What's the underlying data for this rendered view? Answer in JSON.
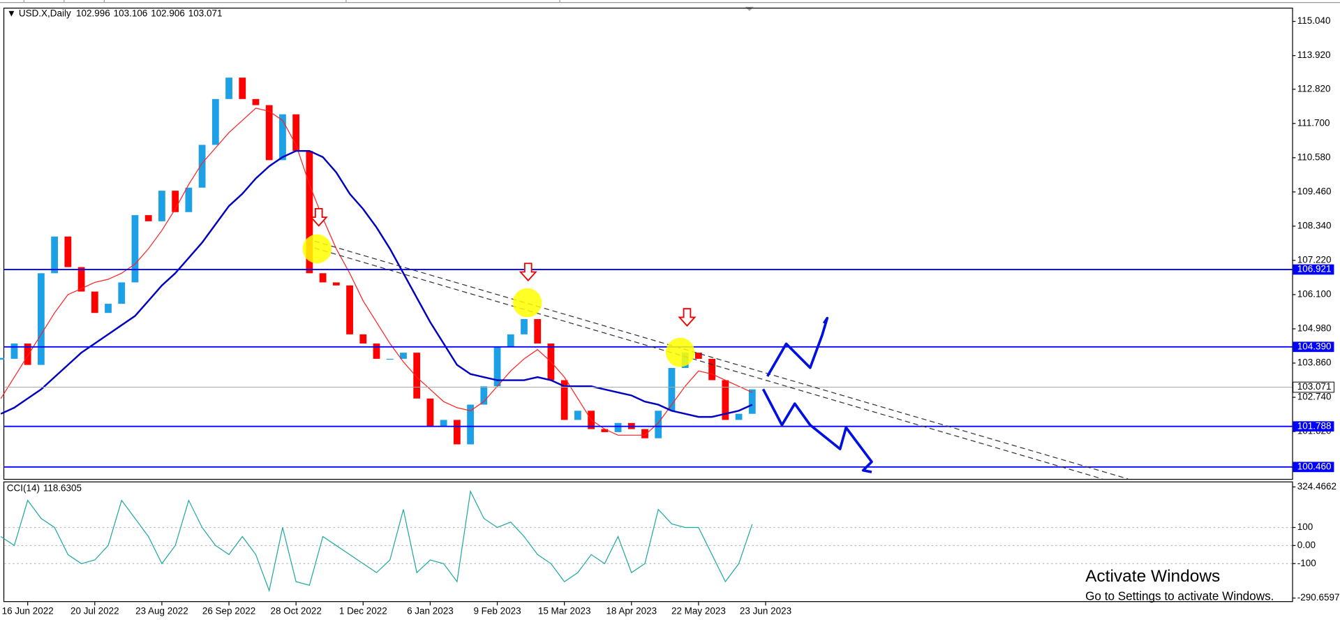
{
  "header": {
    "symbol": "USD.X,Daily",
    "ohlc": [
      102.996,
      103.106,
      102.906,
      103.071
    ]
  },
  "chart_data": [
    {
      "type": "candlestick",
      "categories": [
        null,
        null,
        "16 Jun 2022",
        null,
        null,
        null,
        null,
        "20 Jul 2022",
        null,
        null,
        null,
        null,
        "23 Aug 2022",
        null,
        null,
        null,
        null,
        "26 Sep 2022",
        null,
        null,
        null,
        null,
        "28 Oct 2022",
        null,
        null,
        null,
        null,
        "1 Dec 2022",
        null,
        null,
        null,
        null,
        "6 Jan 2023",
        null,
        null,
        null,
        null,
        "9 Feb 2023",
        null,
        null,
        null,
        null,
        "15 Mar 2023",
        null,
        null,
        null,
        null,
        "18 Apr 2023",
        null,
        null,
        null,
        null,
        "22 May 2023",
        null,
        null,
        null,
        null,
        "23 Jun 2023"
      ],
      "values": [
        104.0,
        104.5,
        103.8,
        106.8,
        108.0,
        107.0,
        106.2,
        105.5,
        105.8,
        106.5,
        108.7,
        108.5,
        109.5,
        108.8,
        109.6,
        111.0,
        112.5,
        113.2,
        112.5,
        112.3,
        110.5,
        112.0,
        110.8,
        106.8,
        106.5,
        106.4,
        104.8,
        104.5,
        104.0,
        104.0,
        104.2,
        102.7,
        101.8,
        102.0,
        101.2,
        102.5,
        103.1,
        104.4,
        104.8,
        105.3,
        104.5,
        103.3,
        102.0,
        102.3,
        101.7,
        101.6,
        101.9,
        101.7,
        101.4,
        102.3,
        103.7,
        104.2,
        104.0,
        103.3,
        102.0,
        102.2,
        103.0,
        null
      ],
      "up_color": "#1ea0e6",
      "down_color": "#ff0000",
      "series": [
        {
          "color": "#ff2020",
          "values": [
            102.7,
            103.4,
            104.1,
            104.8,
            105.5,
            106.1,
            106.3,
            106.5,
            106.6,
            106.8,
            107.1,
            107.6,
            108.2,
            108.9,
            109.7,
            110.4,
            110.9,
            111.4,
            111.8,
            112.2,
            112.1,
            111.8,
            111.0,
            109.7,
            108.6,
            107.6,
            106.8,
            105.9,
            105.2,
            104.5,
            103.9,
            103.4,
            103.0,
            102.6,
            102.4,
            102.3,
            102.6,
            103.1,
            103.6,
            104.0,
            104.3,
            103.9,
            103.4,
            102.7,
            102.0,
            101.7,
            101.5,
            101.5,
            101.5,
            101.9,
            102.5,
            103.1,
            103.6,
            103.5,
            103.3,
            103.1,
            102.9,
            null
          ]
        },
        {
          "color": "#0000c0",
          "values": [
            102.2,
            102.4,
            102.7,
            103.0,
            103.4,
            103.8,
            104.2,
            104.5,
            104.8,
            105.1,
            105.4,
            105.9,
            106.4,
            106.8,
            107.3,
            107.8,
            108.4,
            109.0,
            109.4,
            109.9,
            110.3,
            110.6,
            110.8,
            110.8,
            110.6,
            110.1,
            109.4,
            108.9,
            108.3,
            107.6,
            106.8,
            106.0,
            105.2,
            104.5,
            103.8,
            103.5,
            103.4,
            103.3,
            103.3,
            103.3,
            103.4,
            103.3,
            103.1,
            103.1,
            103.1,
            103.0,
            102.9,
            102.8,
            102.6,
            102.5,
            102.3,
            102.2,
            102.1,
            102.1,
            102.2,
            102.3,
            102.5,
            null
          ]
        }
      ],
      "ylim": [
        100.07,
        115.46
      ],
      "yticks": [
        {
          "value": 115.04,
          "label": "115.040"
        },
        {
          "value": 113.92,
          "label": "113.920"
        },
        {
          "value": 112.82,
          "label": "112.820"
        },
        {
          "value": 111.7,
          "label": "111.700"
        },
        {
          "value": 110.58,
          "label": "110.580"
        },
        {
          "value": 109.46,
          "label": "109.460"
        },
        {
          "value": 108.34,
          "label": "108.340"
        },
        {
          "value": 107.22,
          "label": "107.220"
        },
        {
          "value": 106.1,
          "label": "106.100"
        },
        {
          "value": 104.98,
          "label": "104.980"
        },
        {
          "value": 103.86,
          "label": "103.860"
        },
        {
          "value": 102.74,
          "label": "102.740"
        },
        {
          "value": 101.62,
          "label": "101.620"
        }
      ],
      "levels": [
        106.921,
        {
          "value": 104.39,
          "label": "104.390"
        },
        101.788,
        {
          "value": 100.46,
          "label": "100.460"
        }
      ],
      "level_color": "#0000ff",
      "current": 103.071
    },
    {
      "type": "line",
      "title": "CCI(14)",
      "last": 118.6305,
      "color": "#20a8a0",
      "values": [
        50,
        0,
        250,
        150,
        100,
        -50,
        -100,
        -80,
        0,
        250,
        150,
        50,
        -100,
        0,
        250,
        100,
        0,
        -50,
        50,
        -50,
        -250,
        100,
        -200,
        -220,
        50,
        0,
        -50,
        -100,
        -150,
        -80,
        200,
        -150,
        -80,
        -100,
        -200,
        300,
        150,
        100,
        130,
        50,
        -50,
        -100,
        -200,
        -150,
        -50,
        -100,
        50,
        -150,
        -100,
        200,
        120,
        100,
        100,
        -50,
        -200,
        -100,
        118,
        null
      ],
      "ylim": [
        -308,
        350
      ],
      "yticks": [
        324.4662,
        100,
        {
          "value": 0,
          "label": "0.00"
        },
        -100,
        -290.6597
      ],
      "grid": true
    }
  ],
  "watermark": {
    "title": "Activate Windows",
    "text": "Go to Settings to activate Windows."
  }
}
